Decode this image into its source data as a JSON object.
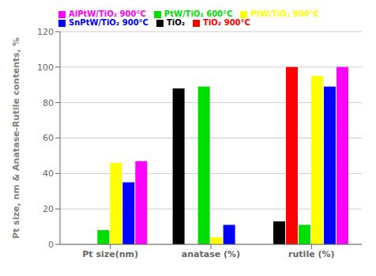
{
  "chart_data": {
    "type": "bar",
    "categories": [
      "Pt size(nm)",
      "anatase (%)",
      "rutile (%)"
    ],
    "series": [
      {
        "name": "TiO₂",
        "color": "#000000",
        "values": [
          0,
          88,
          13
        ]
      },
      {
        "name": "TiO₂ 900°C",
        "color": "#ff0000",
        "values": [
          0,
          0,
          100
        ]
      },
      {
        "name": "PtW/TiO₂ 600°C",
        "color": "#00dd00",
        "values": [
          8,
          89,
          11
        ]
      },
      {
        "name": "PtW/TiO₂ 900°C",
        "color": "#ffff00",
        "values": [
          46,
          4,
          95
        ]
      },
      {
        "name": "SnPtW/TiO₂ 900°C",
        "color": "#0000ff",
        "values": [
          35,
          11,
          89
        ]
      },
      {
        "name": "AlPtW/TiO₂ 900°C",
        "color": "#ff00ff",
        "values": [
          47,
          0,
          100
        ]
      }
    ],
    "ylabel": "Pt size, nm & Anatase-Rutile contents, %",
    "ylim": [
      0,
      120
    ],
    "yticks": [
      0,
      20,
      40,
      60,
      80,
      100,
      120
    ],
    "grid": true,
    "legend": "upper left"
  }
}
